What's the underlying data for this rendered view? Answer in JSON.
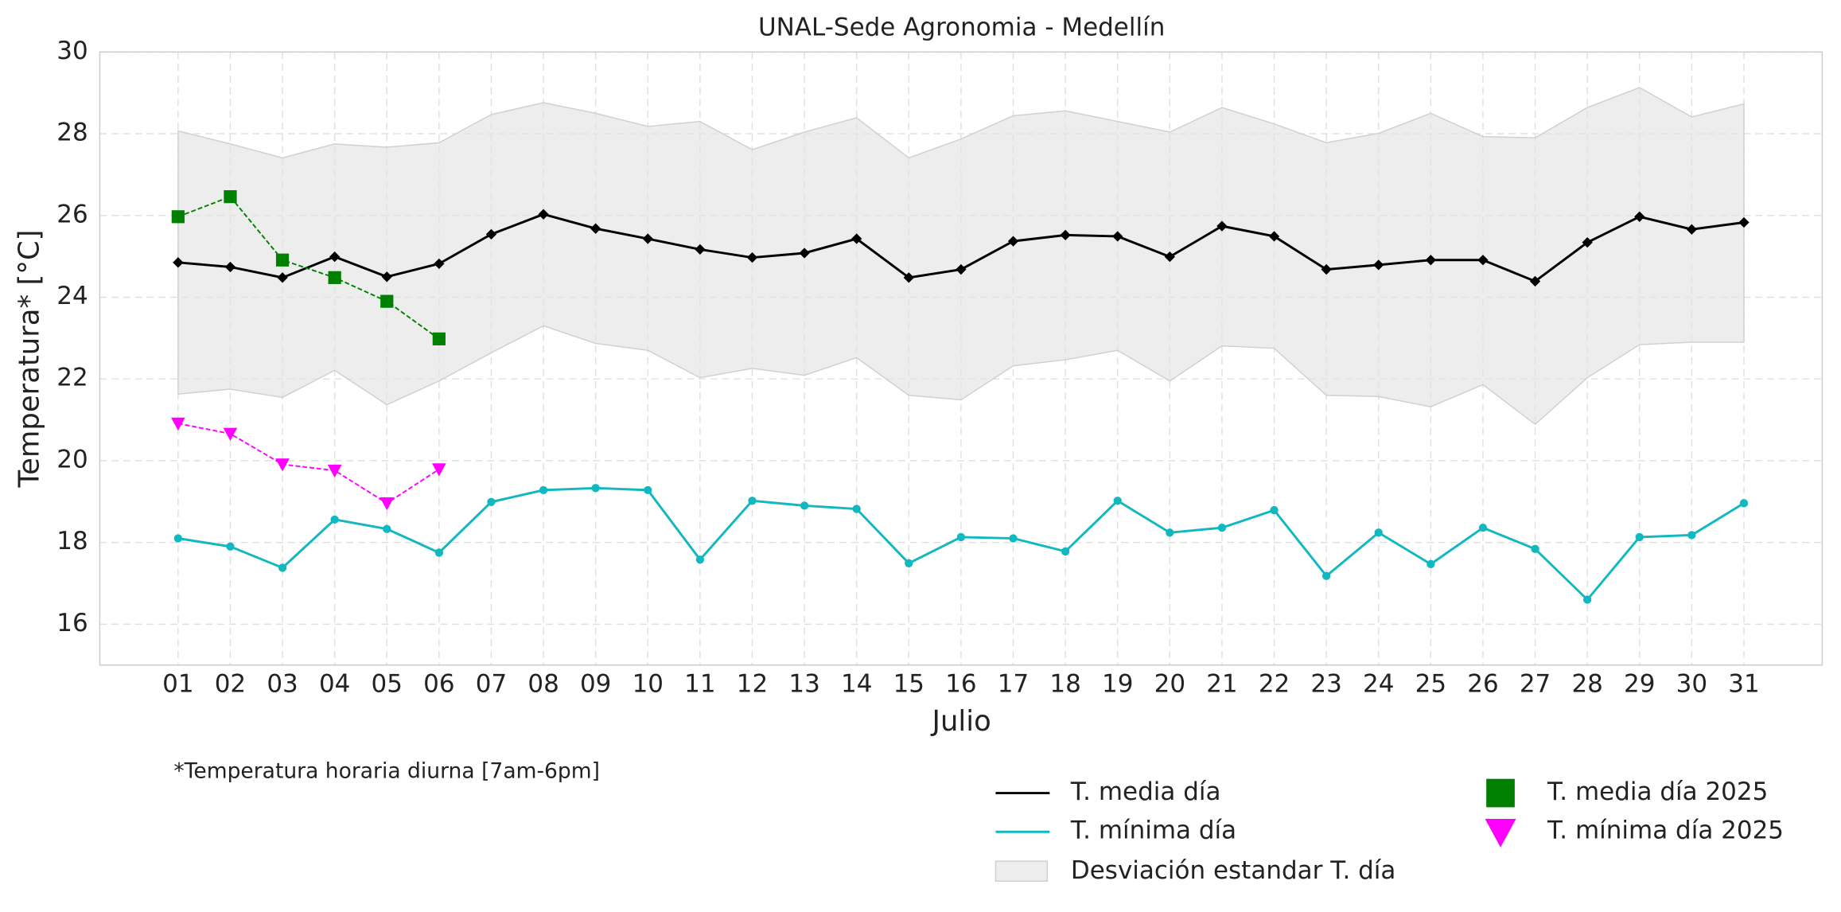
{
  "chart_data": {
    "type": "line",
    "title": "UNAL-Sede Agronomia - Medellín",
    "xlabel": "Julio",
    "ylabel": "Temperatura* [°C]",
    "note": "*Temperatura horaria diurna [7am-6pm]",
    "categories": [
      "01",
      "02",
      "03",
      "04",
      "05",
      "06",
      "07",
      "08",
      "09",
      "10",
      "11",
      "12",
      "13",
      "14",
      "15",
      "16",
      "17",
      "18",
      "19",
      "20",
      "21",
      "22",
      "23",
      "24",
      "25",
      "26",
      "27",
      "28",
      "29",
      "30",
      "31"
    ],
    "ylim": [
      15,
      30
    ],
    "yticks": [
      16,
      18,
      20,
      22,
      24,
      26,
      28,
      30
    ],
    "grid": true,
    "series": [
      {
        "name": "T. media día",
        "color": "#000000",
        "marker": "diamond",
        "linestyle": "solid",
        "values": [
          24.85,
          24.74,
          24.48,
          24.99,
          24.5,
          24.82,
          25.54,
          26.03,
          25.68,
          25.43,
          25.17,
          24.97,
          25.08,
          25.43,
          24.48,
          24.68,
          25.37,
          25.52,
          25.49,
          24.99,
          25.74,
          25.49,
          24.68,
          24.79,
          24.91,
          24.91,
          24.39,
          25.34,
          25.97,
          25.66,
          25.83
        ]
      },
      {
        "name": "T. mínima día",
        "color": "#12b8c0",
        "marker": "circle",
        "linestyle": "solid",
        "values": [
          18.1,
          17.9,
          17.38,
          18.56,
          18.33,
          17.75,
          18.99,
          19.28,
          19.33,
          19.28,
          17.58,
          19.02,
          18.9,
          18.82,
          17.49,
          18.13,
          18.1,
          17.78,
          19.02,
          18.24,
          18.36,
          18.79,
          17.18,
          18.24,
          17.47,
          18.36,
          17.84,
          16.6,
          18.13,
          18.18,
          18.96
        ]
      },
      {
        "name": "Desviación estandar T. día",
        "color": "#e3e3e3",
        "upper": [
          28.07,
          27.75,
          27.41,
          27.75,
          27.67,
          27.78,
          28.47,
          28.76,
          28.5,
          28.18,
          28.3,
          27.61,
          28.04,
          28.39,
          27.41,
          27.87,
          28.44,
          28.56,
          28.3,
          28.04,
          28.64,
          28.24,
          27.78,
          28.01,
          28.5,
          27.93,
          27.9,
          28.64,
          29.13,
          28.41,
          28.73
        ],
        "lower": [
          21.63,
          21.75,
          21.55,
          22.21,
          21.37,
          21.95,
          22.64,
          23.3,
          22.87,
          22.7,
          22.03,
          22.26,
          22.09,
          22.52,
          21.6,
          21.49,
          22.32,
          22.47,
          22.7,
          21.95,
          22.81,
          22.75,
          21.6,
          21.57,
          21.32,
          21.86,
          20.89,
          22.03,
          22.84,
          22.9,
          22.9
        ]
      },
      {
        "name": "T. media día 2025",
        "color": "#008000",
        "marker": "square",
        "linestyle": "dashed",
        "values": [
          25.97,
          26.46,
          24.91,
          24.48,
          23.9,
          22.98,
          null,
          null,
          null,
          null,
          null,
          null,
          null,
          null,
          null,
          null,
          null,
          null,
          null,
          null,
          null,
          null,
          null,
          null,
          null,
          null,
          null,
          null,
          null,
          null,
          null
        ]
      },
      {
        "name": "T. mínima día 2025",
        "color": "#ff00ff",
        "marker": "triangle",
        "linestyle": "dashed",
        "values": [
          20.91,
          20.66,
          19.91,
          19.76,
          18.96,
          19.79,
          null,
          null,
          null,
          null,
          null,
          null,
          null,
          null,
          null,
          null,
          null,
          null,
          null,
          null,
          null,
          null,
          null,
          null,
          null,
          null,
          null,
          null,
          null,
          null,
          null
        ]
      }
    ]
  }
}
